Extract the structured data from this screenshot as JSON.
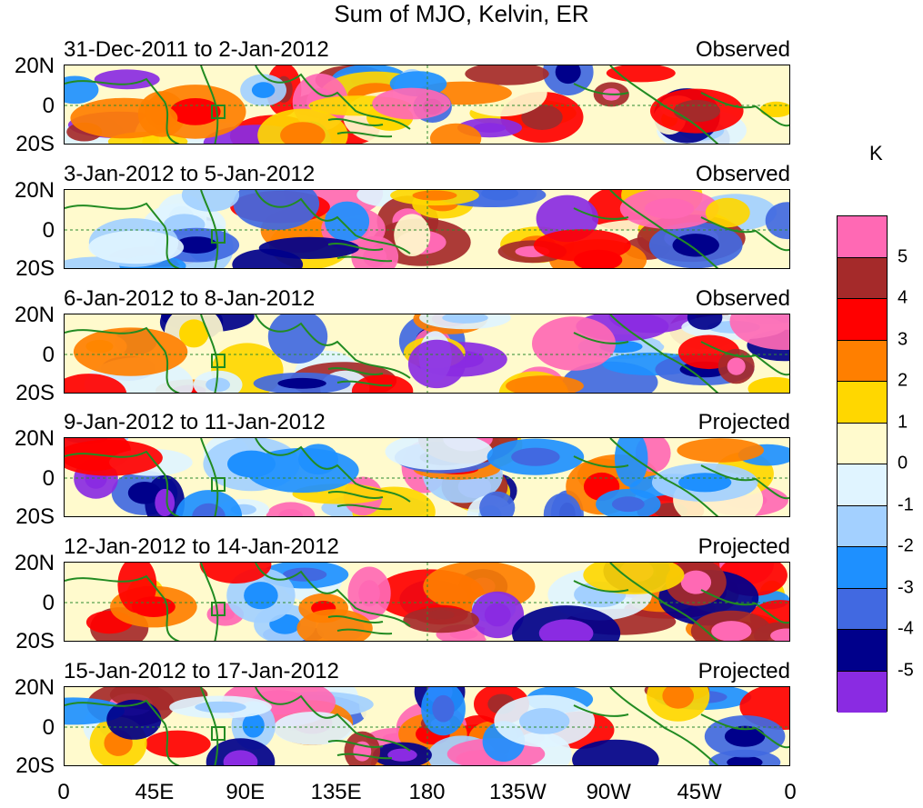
{
  "title": "Sum of MJO, Kelvin, ER",
  "panels": [
    {
      "date_range": "31-Dec-2011 to 2-Jan-2012",
      "status": "Observed"
    },
    {
      "date_range": "3-Jan-2012 to 5-Jan-2012",
      "status": "Observed"
    },
    {
      "date_range": "6-Jan-2012 to 8-Jan-2012",
      "status": "Observed"
    },
    {
      "date_range": "9-Jan-2012 to 11-Jan-2012",
      "status": "Projected"
    },
    {
      "date_range": "12-Jan-2012 to 14-Jan-2012",
      "status": "Projected"
    },
    {
      "date_range": "15-Jan-2012 to 17-Jan-2012",
      "status": "Projected"
    }
  ],
  "y_labels": [
    "20N",
    "0",
    "20S"
  ],
  "x_labels": [
    "0",
    "45E",
    "90E",
    "135E",
    "180",
    "135W",
    "90W",
    "45W",
    "0"
  ],
  "colorbar": {
    "unit": "K",
    "labels": [
      "5",
      "4",
      "3",
      "2",
      "1",
      "0",
      "-1",
      "-2",
      "-3",
      "-4",
      "-5"
    ],
    "colors": [
      "#ff69b4",
      "#a52a2a",
      "#ff0000",
      "#ff7f00",
      "#ffd700",
      "#fffacd",
      "#e0f4ff",
      "#a3d0ff",
      "#1e90ff",
      "#4169e1",
      "#00008b",
      "#8a2be2"
    ]
  }
}
